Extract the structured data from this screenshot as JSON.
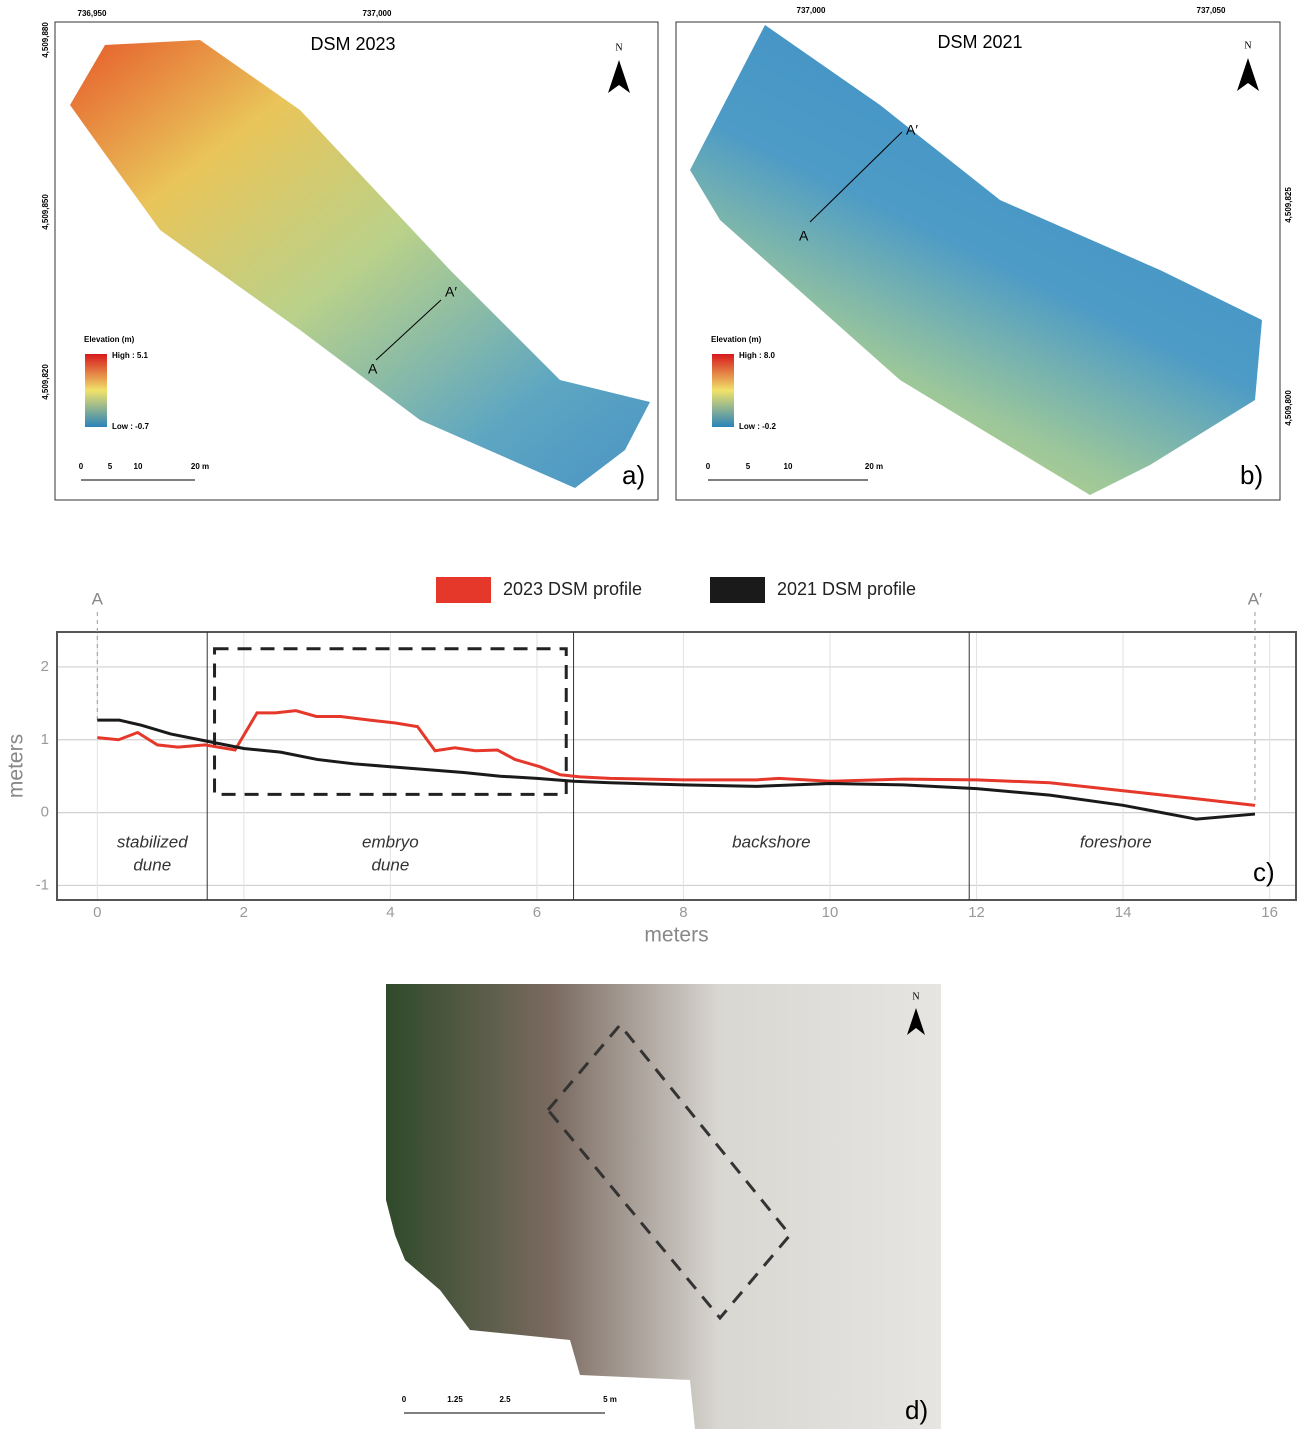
{
  "chart_data": {
    "type": "line",
    "x_label": "meters",
    "y_label": "meters",
    "xlim": [
      -0.55,
      16.36
    ],
    "ylim": [
      -1.2,
      2.48
    ],
    "xticks": [
      0,
      2,
      4,
      6,
      8,
      10,
      12,
      14,
      16
    ],
    "yticks": [
      -1,
      0,
      1,
      2
    ],
    "grid": true,
    "series": [
      {
        "name": "2023 DSM profile",
        "color": "#e5382a",
        "x": [
          0,
          0.29,
          0.55,
          0.82,
          1.1,
          1.47,
          1.88,
          2.18,
          2.43,
          2.71,
          2.99,
          3.32,
          3.72,
          4.07,
          4.37,
          4.61,
          4.88,
          5.16,
          5.46,
          5.7,
          6.04,
          6.32,
          6.59,
          7,
          8,
          9,
          9.3,
          10,
          11,
          12,
          13,
          14,
          15,
          15.8
        ],
        "values": [
          1.03,
          1.0,
          1.1,
          0.93,
          0.9,
          0.93,
          0.86,
          1.37,
          1.37,
          1.4,
          1.32,
          1.32,
          1.27,
          1.23,
          1.18,
          0.85,
          0.89,
          0.85,
          0.86,
          0.73,
          0.63,
          0.52,
          0.49,
          0.47,
          0.45,
          0.45,
          0.47,
          0.43,
          0.46,
          0.45,
          0.41,
          0.3,
          0.19,
          0.1
        ]
      },
      {
        "name": "2021 DSM profile",
        "color": "#1a1a1a",
        "x": [
          0,
          0.3,
          0.6,
          1.0,
          1.5,
          2.0,
          2.5,
          3.0,
          3.5,
          4.0,
          4.5,
          5.0,
          5.5,
          6.0,
          6.5,
          7,
          8,
          9,
          10,
          11,
          12,
          13,
          14,
          15,
          15.8
        ],
        "values": [
          1.27,
          1.27,
          1.2,
          1.08,
          0.98,
          0.88,
          0.83,
          0.73,
          0.67,
          0.63,
          0.59,
          0.55,
          0.5,
          0.47,
          0.43,
          0.41,
          0.38,
          0.36,
          0.4,
          0.38,
          0.33,
          0.24,
          0.1,
          -0.09,
          -0.02
        ]
      }
    ],
    "zone_bounds": [
      1.5,
      6.5,
      11.9
    ],
    "zones": [
      {
        "x": 0.75,
        "label": [
          "stabilized",
          "dune"
        ]
      },
      {
        "x": 4,
        "label": [
          "embryo",
          "dune"
        ]
      },
      {
        "x": 9.2,
        "label": [
          "backshore"
        ]
      },
      {
        "x": 13.9,
        "label": [
          "foreshore"
        ]
      }
    ],
    "highlight": {
      "x": [
        1.6,
        6.4
      ],
      "y": [
        0.25,
        2.25
      ]
    },
    "start_label": "A",
    "end_label": "A′",
    "panel_label": "c)"
  },
  "maps": [
    {
      "title": "DSM 2023",
      "north": "N",
      "eastings": [
        "736,950",
        "737,000"
      ],
      "northings": [
        "4,509,880",
        "4,509,850",
        "4,509,820"
      ],
      "legend_title": "Elevation (m)",
      "high": "High : 5.1",
      "low": "Low : -0.7",
      "scale": [
        "0",
        "5",
        "10",
        "20 m"
      ],
      "start": "A",
      "end": "A′",
      "panel": "a)"
    },
    {
      "title": "DSM 2021",
      "north": "N",
      "eastings": [
        "737,000",
        "737,050"
      ],
      "northings": [
        "4,509,825",
        "4,509,800"
      ],
      "legend_title": "Elevation (m)",
      "high": "High : 8.0",
      "low": "Low : -0.2",
      "scale": [
        "0",
        "5",
        "10",
        "20 m"
      ],
      "start": "A",
      "end": "A′",
      "panel": "b)"
    }
  ],
  "photo": {
    "north": "N",
    "scale": [
      "0",
      "1.25",
      "2.5",
      "5 m"
    ],
    "panel": "d)"
  }
}
